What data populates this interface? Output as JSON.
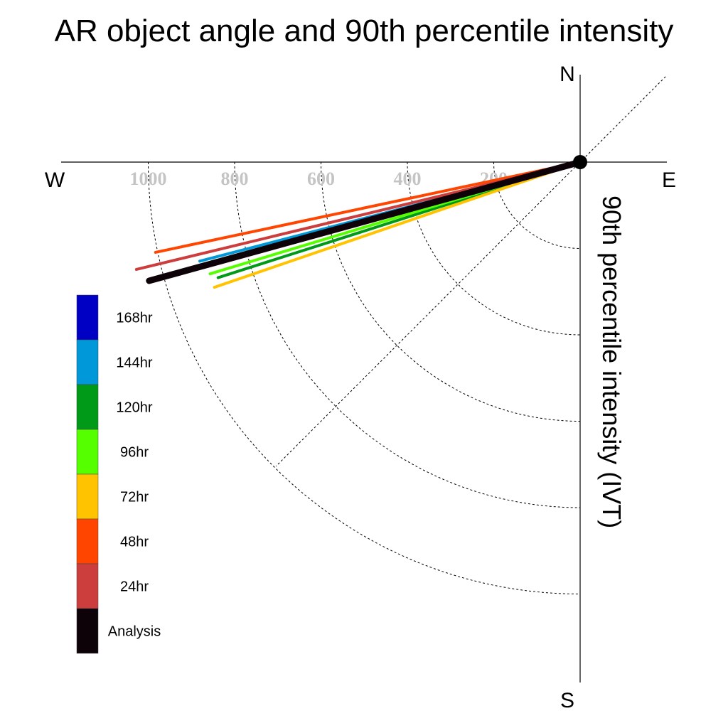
{
  "chart_data": {
    "type": "polar-vector",
    "title": "AR object angle and 90th percentile intensity",
    "ylabel": "90th percentile intensity (IVT)",
    "directions": {
      "north": "N",
      "south": "S",
      "east": "E",
      "west": "W"
    },
    "radial_ticks": [
      "200",
      "400",
      "600",
      "800",
      "1000"
    ],
    "radial_tick_values": [
      200,
      400,
      600,
      800,
      1000
    ],
    "rmax": 1200,
    "grid": "dotted",
    "legend_position": "left",
    "series": [
      {
        "name": "Analysis",
        "color": "#0d0208",
        "angle_deg": 195.4,
        "intensity": 1035
      },
      {
        "name": "24hr",
        "color": "#cc3d3d",
        "angle_deg": 193.6,
        "intensity": 1057
      },
      {
        "name": "48hr",
        "color": "#ff4500",
        "angle_deg": 192.0,
        "intensity": 1005
      },
      {
        "name": "72hr",
        "color": "#ffc300",
        "angle_deg": 198.9,
        "intensity": 895
      },
      {
        "name": "96hr",
        "color": "#55ff00",
        "angle_deg": 196.8,
        "intensity": 895
      },
      {
        "name": "120hr",
        "color": "#009a18",
        "angle_deg": 197.7,
        "intensity": 880
      },
      {
        "name": "144hr",
        "color": "#0098d8",
        "angle_deg": 194.6,
        "intensity": 910
      },
      {
        "name": "168hr",
        "color": "#0000c5",
        "angle_deg": 194.6,
        "intensity": 0
      }
    ],
    "legend": [
      {
        "label": "168hr",
        "color": "#0000c5"
      },
      {
        "label": "144hr",
        "color": "#0098d8"
      },
      {
        "label": "120hr",
        "color": "#009a18"
      },
      {
        "label": "96hr",
        "color": "#55ff00"
      },
      {
        "label": "72hr",
        "color": "#ffc300"
      },
      {
        "label": "48hr",
        "color": "#ff4500"
      },
      {
        "label": "24hr",
        "color": "#cc3d3d"
      },
      {
        "label": "Analysis",
        "color": "#0d0208"
      }
    ]
  }
}
